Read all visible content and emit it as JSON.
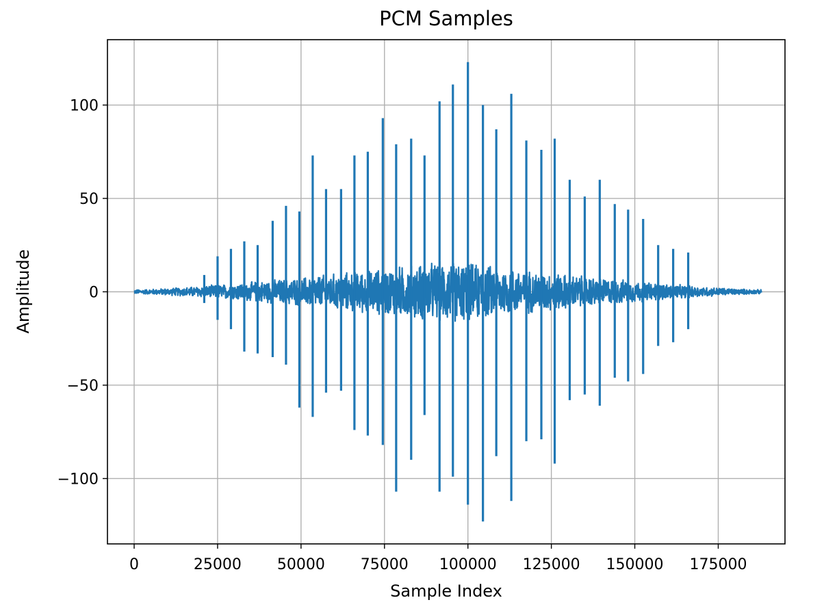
{
  "chart_data": {
    "type": "line",
    "title": "PCM Samples",
    "xlabel": "Sample Index",
    "ylabel": "Amplitude",
    "xlim": [
      -8000,
      195000
    ],
    "ylim": [
      -135,
      135
    ],
    "x_ticks": [
      0,
      25000,
      50000,
      75000,
      100000,
      125000,
      150000,
      175000
    ],
    "x_tick_labels": [
      "0",
      "25000",
      "50000",
      "75000",
      "100000",
      "125000",
      "150000",
      "175000"
    ],
    "y_ticks": [
      -100,
      -50,
      0,
      50,
      100
    ],
    "y_tick_labels": [
      "−100",
      "−50",
      "0",
      "50",
      "100"
    ],
    "grid": true,
    "legend": "none",
    "series": [
      {
        "color": "#1f77b4",
        "x_range": [
          0,
          188000
        ],
        "spikes": [
          {
            "x": 21000,
            "max": 9,
            "min": -6
          },
          {
            "x": 25000,
            "max": 19,
            "min": -15
          },
          {
            "x": 29000,
            "max": 23,
            "min": -20
          },
          {
            "x": 33000,
            "max": 27,
            "min": -32
          },
          {
            "x": 37000,
            "max": 25,
            "min": -33
          },
          {
            "x": 41500,
            "max": 38,
            "min": -35
          },
          {
            "x": 45500,
            "max": 46,
            "min": -39
          },
          {
            "x": 49500,
            "max": 43,
            "min": -62
          },
          {
            "x": 53500,
            "max": 73,
            "min": -67
          },
          {
            "x": 57500,
            "max": 55,
            "min": -54
          },
          {
            "x": 62000,
            "max": 55,
            "min": -53
          },
          {
            "x": 66000,
            "max": 73,
            "min": -74
          },
          {
            "x": 70000,
            "max": 75,
            "min": -77
          },
          {
            "x": 74500,
            "max": 93,
            "min": -82
          },
          {
            "x": 78500,
            "max": 79,
            "min": -107
          },
          {
            "x": 83000,
            "max": 82,
            "min": -90
          },
          {
            "x": 87000,
            "max": 73,
            "min": -66
          },
          {
            "x": 91500,
            "max": 102,
            "min": -107
          },
          {
            "x": 95500,
            "max": 111,
            "min": -99
          },
          {
            "x": 100000,
            "max": 123,
            "min": -114
          },
          {
            "x": 104500,
            "max": 100,
            "min": -123
          },
          {
            "x": 108500,
            "max": 87,
            "min": -88
          },
          {
            "x": 113000,
            "max": 106,
            "min": -112
          },
          {
            "x": 117500,
            "max": 81,
            "min": -80
          },
          {
            "x": 122000,
            "max": 76,
            "min": -79
          },
          {
            "x": 126000,
            "max": 82,
            "min": -92
          },
          {
            "x": 130500,
            "max": 60,
            "min": -58
          },
          {
            "x": 135000,
            "max": 51,
            "min": -55
          },
          {
            "x": 139500,
            "max": 60,
            "min": -61
          },
          {
            "x": 144000,
            "max": 47,
            "min": -46
          },
          {
            "x": 148000,
            "max": 44,
            "min": -48
          },
          {
            "x": 152500,
            "max": 39,
            "min": -44
          },
          {
            "x": 157000,
            "max": 25,
            "min": -29
          },
          {
            "x": 161500,
            "max": 23,
            "min": -27
          },
          {
            "x": 166000,
            "max": 21,
            "min": -20
          }
        ]
      }
    ]
  }
}
